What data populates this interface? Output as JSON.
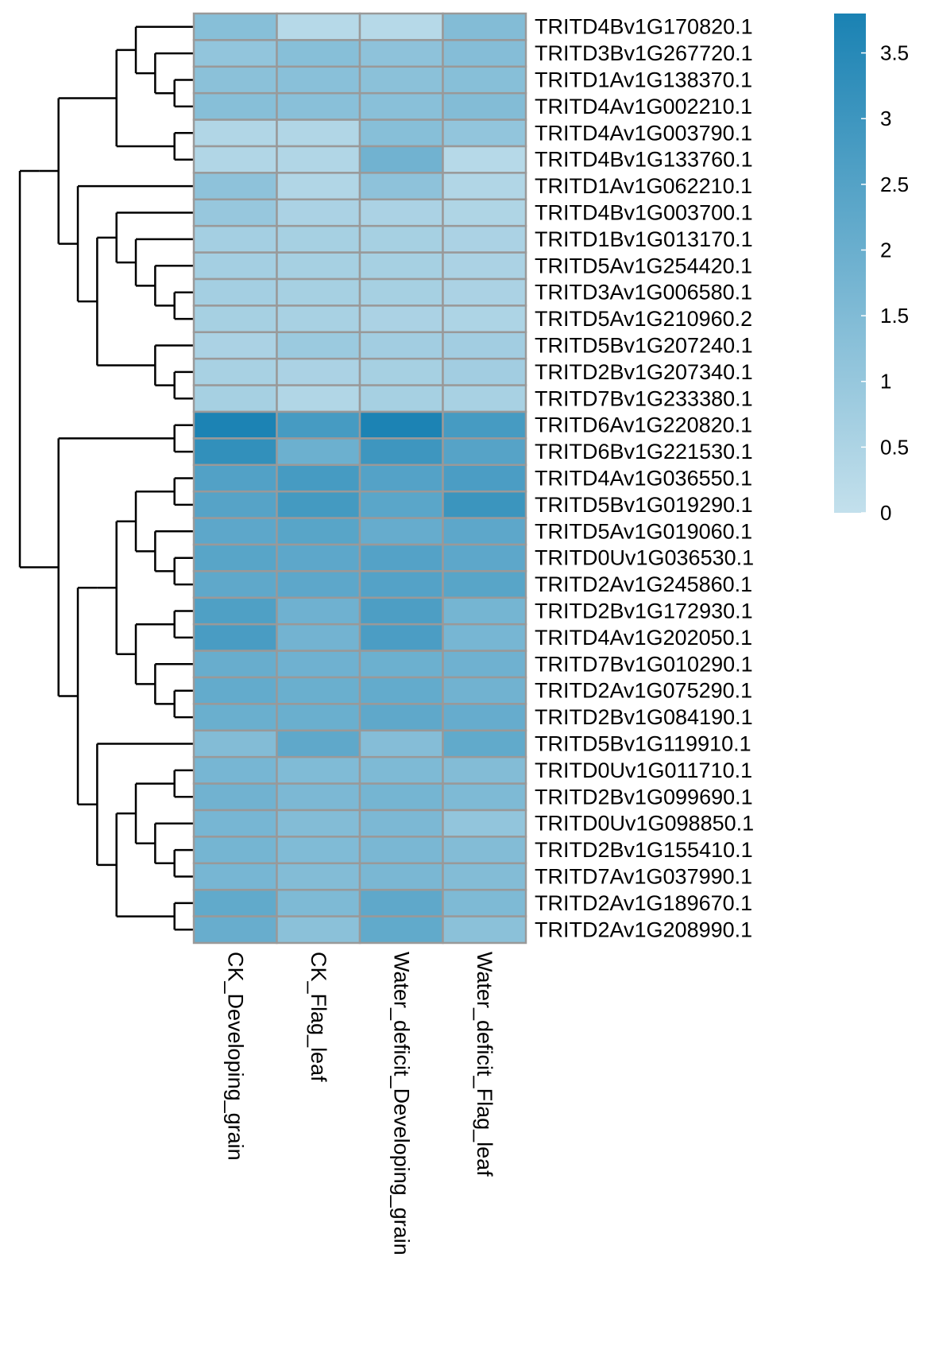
{
  "chart_data": {
    "type": "heatmap",
    "title": "",
    "xlabel": "",
    "ylabel": "",
    "columns": [
      "CK_Developing_grain",
      "CK_Flag_leaf",
      "Water_deficit_Developing_grain",
      "Water_deficit_Flag_leaf"
    ],
    "rows": [
      "TRITD4Bv1G170820.1",
      "TRITD3Bv1G267720.1",
      "TRITD1Av1G138370.1",
      "TRITD4Av1G002210.1",
      "TRITD4Av1G003790.1",
      "TRITD4Bv1G133760.1",
      "TRITD1Av1G062210.1",
      "TRITD4Bv1G003700.1",
      "TRITD1Bv1G013170.1",
      "TRITD5Av1G254420.1",
      "TRITD3Av1G006580.1",
      "TRITD5Av1G210960.2",
      "TRITD5Bv1G207240.1",
      "TRITD2Bv1G207340.1",
      "TRITD7Bv1G233380.1",
      "TRITD6Av1G220820.1",
      "TRITD6Bv1G221530.1",
      "TRITD4Av1G036550.1",
      "TRITD5Bv1G019290.1",
      "TRITD5Av1G019060.1",
      "TRITD0Uv1G036530.1",
      "TRITD2Av1G245860.1",
      "TRITD2Bv1G172930.1",
      "TRITD4Av1G202050.1",
      "TRITD7Bv1G010290.1",
      "TRITD2Av1G075290.1",
      "TRITD2Bv1G084190.1",
      "TRITD5Bv1G119910.1",
      "TRITD0Uv1G011710.1",
      "TRITD2Bv1G099690.1",
      "TRITD0Uv1G098850.1",
      "TRITD2Bv1G155410.1",
      "TRITD7Av1G037990.1",
      "TRITD2Av1G189670.1",
      "TRITD2Av1G208990.1"
    ],
    "values": [
      [
        1.35,
        0.3,
        0.3,
        1.45
      ],
      [
        1.1,
        1.35,
        1.2,
        1.4
      ],
      [
        1.25,
        1.3,
        1.25,
        1.35
      ],
      [
        1.35,
        1.3,
        1.3,
        1.45
      ],
      [
        0.4,
        0.4,
        1.35,
        1.1
      ],
      [
        0.4,
        0.4,
        1.85,
        0.3
      ],
      [
        1.2,
        0.4,
        1.2,
        0.4
      ],
      [
        1.0,
        0.55,
        0.55,
        0.45
      ],
      [
        0.7,
        0.65,
        0.65,
        0.55
      ],
      [
        0.7,
        0.65,
        0.65,
        0.55
      ],
      [
        0.7,
        0.65,
        0.65,
        0.55
      ],
      [
        0.65,
        0.6,
        0.55,
        0.5
      ],
      [
        0.55,
        0.9,
        0.75,
        0.75
      ],
      [
        0.6,
        0.55,
        0.65,
        0.75
      ],
      [
        0.65,
        0.4,
        0.65,
        0.6
      ],
      [
        3.75,
        2.8,
        3.75,
        2.8
      ],
      [
        3.25,
        1.95,
        3.0,
        2.45
      ],
      [
        2.55,
        2.8,
        2.5,
        2.7
      ],
      [
        2.45,
        2.85,
        2.35,
        3.05
      ],
      [
        2.3,
        2.4,
        2.1,
        2.3
      ],
      [
        2.4,
        2.3,
        2.5,
        2.3
      ],
      [
        2.25,
        2.3,
        2.5,
        2.4
      ],
      [
        2.6,
        1.9,
        2.65,
        1.75
      ],
      [
        2.75,
        1.8,
        2.7,
        1.7
      ],
      [
        2.05,
        1.9,
        1.95,
        1.9
      ],
      [
        2.15,
        2.0,
        2.15,
        1.85
      ],
      [
        2.0,
        2.0,
        2.25,
        2.1
      ],
      [
        1.45,
        2.25,
        1.4,
        2.2
      ],
      [
        1.7,
        1.5,
        1.55,
        1.45
      ],
      [
        1.85,
        1.6,
        1.75,
        1.55
      ],
      [
        1.7,
        1.45,
        1.6,
        1.1
      ],
      [
        1.75,
        1.5,
        1.65,
        1.45
      ],
      [
        1.7,
        1.45,
        1.65,
        1.45
      ],
      [
        2.2,
        1.55,
        2.25,
        1.55
      ],
      [
        2.05,
        1.25,
        2.2,
        1.25
      ]
    ],
    "colorbar": {
      "min": 0,
      "max": 3.8,
      "ticks": [
        0,
        0.5,
        1,
        1.5,
        2,
        2.5,
        3,
        3.5
      ],
      "tick_labels": [
        "0",
        "0.5",
        "1",
        "1.5",
        "2",
        "2.5",
        "3",
        "3.5"
      ],
      "low_color": "#c3e0ec",
      "high_color": "#1a82b3"
    },
    "cell_border_color": "#999999",
    "dendrogram": "rows",
    "legend_position": "right"
  }
}
